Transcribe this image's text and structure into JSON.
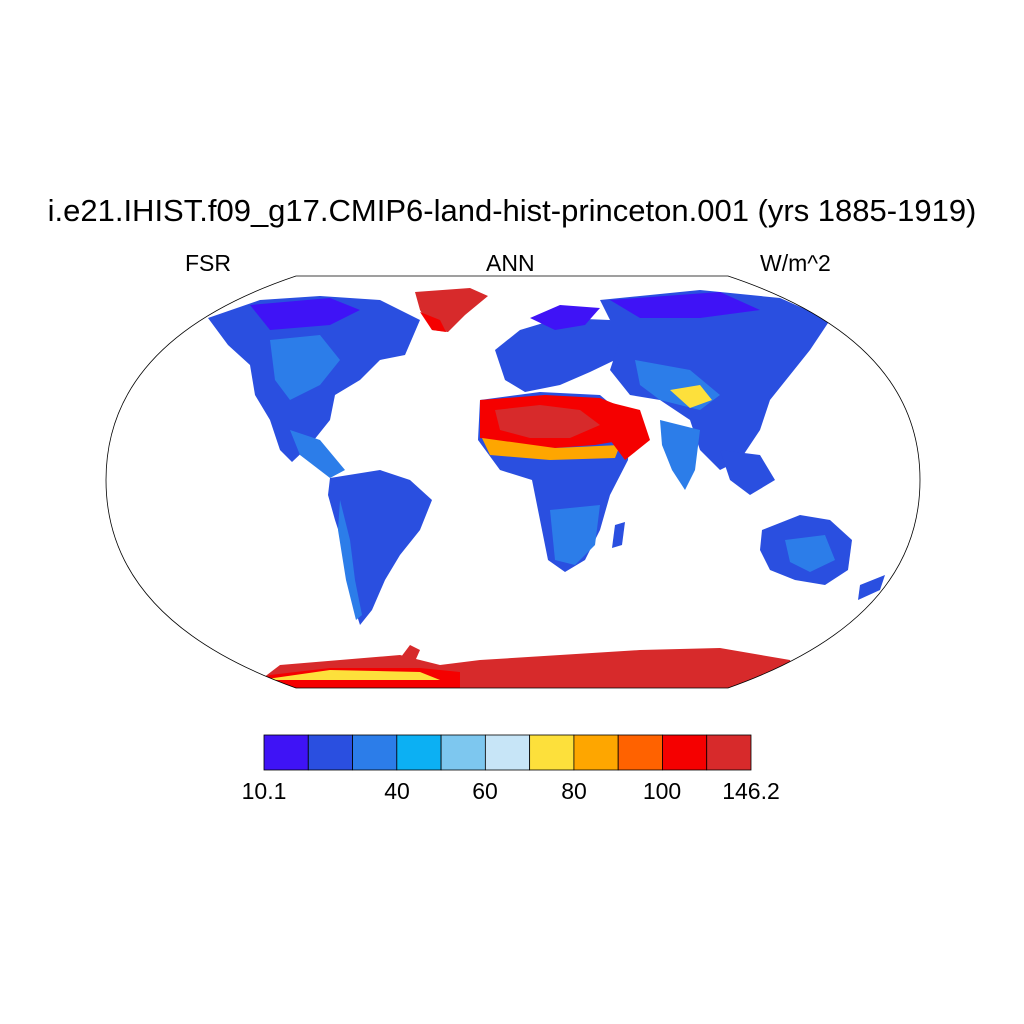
{
  "title": "i.e21.IHIST.f09_g17.CMIP6-land-hist-princeton.001 (yrs 1885-1919)",
  "left_label": "FSR",
  "center_label": "ANN",
  "right_label": "W/m^2",
  "colorbar": {
    "colors": [
      "#3f13f6",
      "#2a4fe0",
      "#2c7de9",
      "#0cb0f3",
      "#7dc7ef",
      "#c7e5f7",
      "#fde03b",
      "#fea600",
      "#ff6200",
      "#f50000",
      "#d72a2b"
    ],
    "labels": [
      "10.1",
      "40",
      "60",
      "80",
      "100",
      "146.2"
    ]
  },
  "colors": {
    "sea": "#ffffff",
    "frame": "#000000"
  }
}
